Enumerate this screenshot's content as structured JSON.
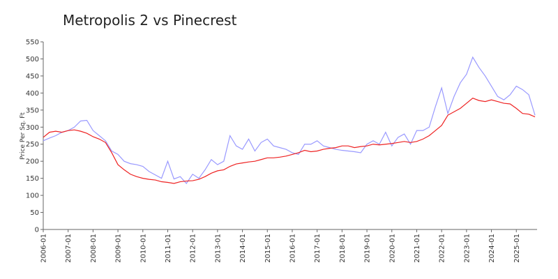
{
  "chart_data": {
    "type": "line",
    "title": "Metropolis 2 vs Pinecrest",
    "y_label": "Price Per Sq. Ft",
    "x": [
      "2006-01",
      "2006-04",
      "2006-07",
      "2006-10",
      "2007-01",
      "2007-04",
      "2007-07",
      "2007-10",
      "2008-01",
      "2008-04",
      "2008-07",
      "2008-10",
      "2009-01",
      "2009-04",
      "2009-07",
      "2009-10",
      "2010-01",
      "2010-04",
      "2010-07",
      "2010-10",
      "2011-01",
      "2011-04",
      "2011-07",
      "2011-10",
      "2012-01",
      "2012-04",
      "2012-07",
      "2012-10",
      "2013-01",
      "2013-04",
      "2013-07",
      "2013-10",
      "2014-01",
      "2014-04",
      "2014-07",
      "2014-10",
      "2015-01",
      "2015-04",
      "2015-07",
      "2015-10",
      "2016-01",
      "2016-04",
      "2016-07",
      "2016-10",
      "2017-01",
      "2017-04",
      "2017-07",
      "2017-10",
      "2018-01",
      "2018-04",
      "2018-07",
      "2018-10",
      "2019-01",
      "2019-04",
      "2019-07",
      "2019-10",
      "2020-01",
      "2020-04",
      "2020-07",
      "2020-10",
      "2021-01",
      "2021-04",
      "2021-07",
      "2021-10",
      "2022-01",
      "2022-04",
      "2022-07",
      "2022-10",
      "2023-01",
      "2023-04",
      "2023-07",
      "2023-10",
      "2024-01",
      "2024-04",
      "2024-07",
      "2024-10",
      "2025-01",
      "2025-04",
      "2025-07",
      "2025-10"
    ],
    "series": [
      {
        "color": "#9999ff",
        "values": [
          260,
          268,
          275,
          285,
          290,
          300,
          318,
          320,
          290,
          275,
          260,
          230,
          220,
          200,
          193,
          190,
          185,
          170,
          160,
          150,
          200,
          148,
          155,
          135,
          162,
          150,
          175,
          205,
          190,
          200,
          275,
          245,
          235,
          265,
          230,
          255,
          265,
          245,
          240,
          235,
          225,
          220,
          250,
          250,
          260,
          245,
          240,
          235,
          232,
          230,
          228,
          225,
          250,
          260,
          250,
          285,
          245,
          270,
          280,
          250,
          290,
          290,
          300,
          360,
          415,
          340,
          390,
          430,
          455,
          505,
          475,
          450,
          420,
          390,
          380,
          395,
          420,
          410,
          395,
          335
        ]
      },
      {
        "color": "#ee2222",
        "values": [
          270,
          285,
          288,
          285,
          290,
          292,
          288,
          282,
          272,
          265,
          255,
          225,
          190,
          175,
          162,
          155,
          150,
          147,
          145,
          140,
          138,
          135,
          140,
          142,
          143,
          147,
          155,
          165,
          172,
          175,
          185,
          192,
          195,
          198,
          200,
          205,
          210,
          210,
          212,
          215,
          220,
          225,
          232,
          228,
          230,
          235,
          238,
          240,
          245,
          245,
          240,
          243,
          245,
          250,
          248,
          250,
          252,
          255,
          258,
          255,
          258,
          265,
          275,
          290,
          305,
          335,
          345,
          355,
          370,
          385,
          378,
          375,
          380,
          375,
          370,
          368,
          355,
          340,
          338,
          330
        ]
      }
    ],
    "xlim": [
      "2006-01",
      "2025-11"
    ],
    "xticks": [
      "2006-01",
      "2007-01",
      "2008-01",
      "2009-01",
      "2010-01",
      "2011-01",
      "2012-01",
      "2013-01",
      "2014-01",
      "2015-01",
      "2016-01",
      "2017-01",
      "2018-01",
      "2019-01",
      "2020-01",
      "2021-01",
      "2022-01",
      "2023-01",
      "2024-01",
      "2025-01"
    ],
    "ylim": [
      0,
      550
    ],
    "yticks": [
      0,
      50,
      100,
      150,
      200,
      250,
      300,
      350,
      400,
      450,
      500,
      550
    ]
  }
}
